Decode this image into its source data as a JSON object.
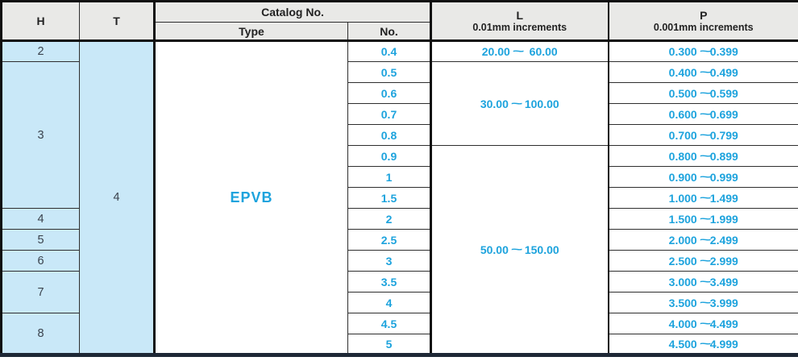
{
  "colors": {
    "accent": "#1da3dd",
    "header_bg": "#e9e9e7",
    "cell_blue": "#c9e8f8",
    "text_dark": "#3a424d",
    "bottom_border": "#1e2836"
  },
  "table": {
    "headers": {
      "h": "H",
      "t": "T",
      "catalog": "Catalog No.",
      "type": "Type",
      "no": "No.",
      "l_title": "L",
      "l_sub": "0.01mm increments",
      "p_title": "P",
      "p_sub": "0.001mm increments"
    },
    "t_value": "4",
    "type_value": "EPVB",
    "h_spans": [
      {
        "value": "2",
        "rows": 1
      },
      {
        "value": "3",
        "rows": 7
      },
      {
        "value": "4",
        "rows": 1
      },
      {
        "value": "5",
        "rows": 1
      },
      {
        "value": "6",
        "rows": 1
      },
      {
        "value": "7",
        "rows": 2
      },
      {
        "value": "8",
        "rows": 2
      }
    ],
    "l_spans": [
      {
        "value": "20.00 ~  60.00",
        "rows": 1
      },
      {
        "value": "30.00 ~ 100.00",
        "rows": 4
      },
      {
        "value": "50.00 ~ 150.00",
        "rows": 10
      }
    ],
    "rows": [
      {
        "no": "0.4",
        "p": "0.300 ~0.399"
      },
      {
        "no": "0.5",
        "p": "0.400 ~0.499"
      },
      {
        "no": "0.6",
        "p": "0.500 ~0.599"
      },
      {
        "no": "0.7",
        "p": "0.600 ~0.699"
      },
      {
        "no": "0.8",
        "p": "0.700 ~0.799"
      },
      {
        "no": "0.9",
        "p": "0.800 ~0.899"
      },
      {
        "no": "1",
        "p": "0.900 ~0.999"
      },
      {
        "no": "1.5",
        "p": "1.000 ~1.499"
      },
      {
        "no": "2",
        "p": "1.500 ~1.999"
      },
      {
        "no": "2.5",
        "p": "2.000 ~2.499"
      },
      {
        "no": "3",
        "p": "2.500 ~2.999"
      },
      {
        "no": "3.5",
        "p": "3.000 ~3.499"
      },
      {
        "no": "4",
        "p": "3.500 ~3.999"
      },
      {
        "no": "4.5",
        "p": "4.000 ~4.499"
      },
      {
        "no": "5",
        "p": "4.500 ~4.999"
      }
    ]
  }
}
